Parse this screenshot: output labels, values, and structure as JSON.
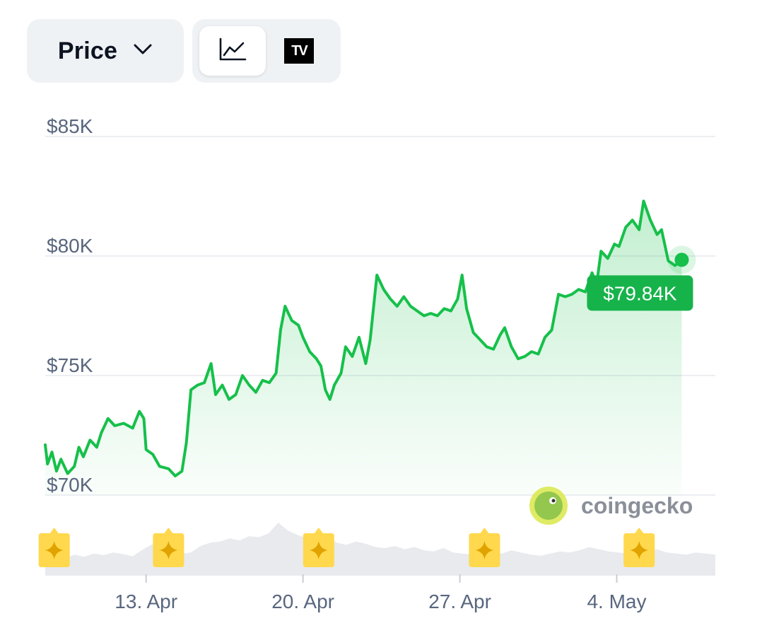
{
  "toolbar": {
    "dropdown_label": "Price",
    "chart_icons": [
      "line-chart-icon",
      "tradingview-icon"
    ],
    "tv_text": "TV"
  },
  "brand": {
    "name": "coingecko"
  },
  "colors": {
    "line": "#16c04a",
    "fill": "#16c04a",
    "label_bg": "#16b34a",
    "grid": "#eceef2",
    "volume": "#e8eaee",
    "event": "#ffd84d"
  },
  "current_price_label": "$79.84K",
  "chart_data": {
    "type": "line",
    "title": "",
    "xlabel": "",
    "ylabel": "",
    "ylim": [
      70000,
      85000
    ],
    "y_ticks": [
      {
        "value": 85000,
        "label": "$85K"
      },
      {
        "value": 80000,
        "label": "$80K"
      },
      {
        "value": 75000,
        "label": "$75K"
      },
      {
        "value": 70000,
        "label": "$70K"
      }
    ],
    "x_ticks": [
      {
        "day": 13,
        "label": "13. Apr"
      },
      {
        "day": 20,
        "label": "20. Apr"
      },
      {
        "day": 27,
        "label": "27. Apr"
      },
      {
        "day": 34,
        "label": "4. May"
      }
    ],
    "x_range": [
      8.5,
      38.4
    ],
    "series": [
      {
        "name": "",
        "points": [
          [
            8.5,
            72100
          ],
          [
            8.6,
            71300
          ],
          [
            8.8,
            71800
          ],
          [
            9.0,
            71000
          ],
          [
            9.2,
            71500
          ],
          [
            9.5,
            70900
          ],
          [
            9.8,
            71200
          ],
          [
            10.0,
            72000
          ],
          [
            10.2,
            71600
          ],
          [
            10.5,
            72300
          ],
          [
            10.8,
            72000
          ],
          [
            11.0,
            72600
          ],
          [
            11.3,
            73200
          ],
          [
            11.6,
            72900
          ],
          [
            12.0,
            73000
          ],
          [
            12.4,
            72800
          ],
          [
            12.7,
            73500
          ],
          [
            12.9,
            73200
          ],
          [
            13.0,
            71900
          ],
          [
            13.3,
            71700
          ],
          [
            13.6,
            71200
          ],
          [
            14.0,
            71100
          ],
          [
            14.3,
            70800
          ],
          [
            14.6,
            71000
          ],
          [
            14.8,
            72200
          ],
          [
            15.0,
            74400
          ],
          [
            15.3,
            74600
          ],
          [
            15.6,
            74700
          ],
          [
            15.9,
            75500
          ],
          [
            16.1,
            74200
          ],
          [
            16.4,
            74600
          ],
          [
            16.7,
            74000
          ],
          [
            17.0,
            74200
          ],
          [
            17.3,
            75000
          ],
          [
            17.6,
            74600
          ],
          [
            17.9,
            74300
          ],
          [
            18.2,
            74800
          ],
          [
            18.5,
            74700
          ],
          [
            18.8,
            75100
          ],
          [
            19.0,
            76900
          ],
          [
            19.2,
            77900
          ],
          [
            19.5,
            77300
          ],
          [
            19.8,
            77100
          ],
          [
            20.0,
            76600
          ],
          [
            20.3,
            76000
          ],
          [
            20.6,
            75700
          ],
          [
            20.8,
            75400
          ],
          [
            21.0,
            74400
          ],
          [
            21.2,
            74000
          ],
          [
            21.4,
            74600
          ],
          [
            21.7,
            75100
          ],
          [
            21.9,
            76200
          ],
          [
            22.2,
            75800
          ],
          [
            22.5,
            76600
          ],
          [
            22.8,
            75500
          ],
          [
            23.0,
            76500
          ],
          [
            23.3,
            79200
          ],
          [
            23.6,
            78600
          ],
          [
            23.9,
            78200
          ],
          [
            24.2,
            77900
          ],
          [
            24.5,
            78300
          ],
          [
            24.8,
            77900
          ],
          [
            25.1,
            77700
          ],
          [
            25.4,
            77500
          ],
          [
            25.7,
            77600
          ],
          [
            26.0,
            77500
          ],
          [
            26.3,
            77800
          ],
          [
            26.6,
            77700
          ],
          [
            26.9,
            78200
          ],
          [
            27.1,
            79200
          ],
          [
            27.3,
            77800
          ],
          [
            27.6,
            76800
          ],
          [
            27.9,
            76500
          ],
          [
            28.2,
            76200
          ],
          [
            28.5,
            76100
          ],
          [
            28.8,
            76700
          ],
          [
            29.0,
            77000
          ],
          [
            29.3,
            76200
          ],
          [
            29.6,
            75700
          ],
          [
            29.9,
            75800
          ],
          [
            30.2,
            76000
          ],
          [
            30.5,
            75900
          ],
          [
            30.8,
            76600
          ],
          [
            31.1,
            76900
          ],
          [
            31.4,
            78400
          ],
          [
            31.7,
            78300
          ],
          [
            32.0,
            78400
          ],
          [
            32.3,
            78600
          ],
          [
            32.6,
            78500
          ],
          [
            32.9,
            79300
          ],
          [
            33.1,
            78800
          ],
          [
            33.3,
            80200
          ],
          [
            33.6,
            79900
          ],
          [
            33.9,
            80500
          ],
          [
            34.1,
            80400
          ],
          [
            34.4,
            81200
          ],
          [
            34.7,
            81500
          ],
          [
            35.0,
            81100
          ],
          [
            35.2,
            82300
          ],
          [
            35.5,
            81500
          ],
          [
            35.8,
            80900
          ],
          [
            36.0,
            81100
          ],
          [
            36.3,
            79800
          ],
          [
            36.6,
            79600
          ],
          [
            36.9,
            79840
          ]
        ]
      }
    ],
    "volume": [
      0.3,
      0.34,
      0.28,
      0.36,
      0.32,
      0.38,
      0.35,
      0.4,
      0.37,
      0.33,
      0.45,
      0.55,
      0.5,
      0.42,
      0.38,
      0.4,
      0.52,
      0.58,
      0.6,
      0.66,
      0.62,
      0.7,
      0.68,
      0.75,
      0.95,
      0.8,
      0.72,
      0.66,
      0.62,
      0.7,
      0.58,
      0.54,
      0.6,
      0.56,
      0.5,
      0.48,
      0.52,
      0.46,
      0.5,
      0.44,
      0.42,
      0.48,
      0.4,
      0.38,
      0.36,
      0.4,
      0.42,
      0.38,
      0.44,
      0.4,
      0.36,
      0.34,
      0.38,
      0.42,
      0.4,
      0.44,
      0.5,
      0.46,
      0.42,
      0.4,
      0.38,
      0.36,
      0.42,
      0.46,
      0.4,
      0.38,
      0.36,
      0.4,
      0.38,
      0.36
    ],
    "events": [
      8.9,
      14.0,
      20.7,
      28.1,
      35.0
    ]
  }
}
